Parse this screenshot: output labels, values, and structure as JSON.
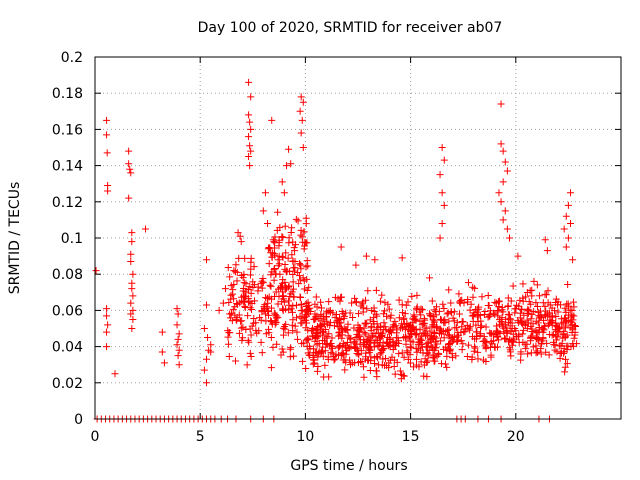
{
  "chart_data": {
    "type": "scatter",
    "title": "Day 100 of 2020, SRMTID for receiver ab07",
    "xlabel": "GPS time / hours",
    "ylabel": "SRMTID / TECUs",
    "xlim": [
      0,
      25
    ],
    "ylim": [
      0,
      0.2
    ],
    "xticks": [
      0,
      5,
      10,
      15,
      20
    ],
    "xtick_labels": [
      "0",
      "5",
      "10",
      "15",
      "20"
    ],
    "yticks": [
      0,
      0.02,
      0.04,
      0.06,
      0.08,
      0.1,
      0.12,
      0.14,
      0.16,
      0.18,
      0.2
    ],
    "ytick_labels": [
      "0",
      "0.02",
      "0.04",
      "0.06",
      "0.08",
      "0.1",
      "0.12",
      "0.14",
      "0.16",
      "0.18",
      "0.2"
    ],
    "grid": true,
    "marker": "+",
    "color": "#ff0000",
    "series": [
      {
        "name": "SRMTID",
        "points": [
          [
            0.05,
            0.082
          ],
          [
            0.55,
            0.165
          ],
          [
            0.55,
            0.157
          ],
          [
            0.58,
            0.147
          ],
          [
            0.6,
            0.129
          ],
          [
            0.6,
            0.126
          ],
          [
            0.55,
            0.061
          ],
          [
            0.55,
            0.057
          ],
          [
            0.6,
            0.052
          ],
          [
            0.55,
            0.048
          ],
          [
            0.55,
            0.04
          ],
          [
            0.95,
            0.025
          ],
          [
            1.6,
            0.148
          ],
          [
            1.6,
            0.141
          ],
          [
            1.65,
            0.138
          ],
          [
            1.7,
            0.136
          ],
          [
            1.6,
            0.122
          ],
          [
            1.75,
            0.103
          ],
          [
            1.75,
            0.098
          ],
          [
            1.7,
            0.091
          ],
          [
            1.7,
            0.087
          ],
          [
            1.8,
            0.08
          ],
          [
            1.75,
            0.075
          ],
          [
            1.75,
            0.072
          ],
          [
            1.8,
            0.068
          ],
          [
            1.7,
            0.064
          ],
          [
            1.8,
            0.06
          ],
          [
            1.7,
            0.058
          ],
          [
            1.8,
            0.055
          ],
          [
            1.75,
            0.05
          ],
          [
            2.4,
            0.105
          ],
          [
            3.2,
            0.048
          ],
          [
            3.2,
            0.037
          ],
          [
            3.3,
            0.031
          ],
          [
            3.9,
            0.061
          ],
          [
            3.95,
            0.058
          ],
          [
            3.9,
            0.052
          ],
          [
            4.0,
            0.047
          ],
          [
            3.95,
            0.044
          ],
          [
            3.9,
            0.041
          ],
          [
            4.0,
            0.038
          ],
          [
            3.95,
            0.035
          ],
          [
            4.0,
            0.03
          ],
          [
            5.3,
            0.088
          ],
          [
            5.3,
            0.063
          ],
          [
            5.2,
            0.05
          ],
          [
            5.35,
            0.045
          ],
          [
            5.4,
            0.038
          ],
          [
            5.3,
            0.033
          ],
          [
            5.2,
            0.027
          ],
          [
            5.3,
            0.02
          ],
          [
            5.5,
            0.041
          ],
          [
            5.5,
            0.037
          ],
          [
            5.9,
            0.06
          ],
          [
            6.1,
            0.064
          ],
          [
            6.2,
            0.072
          ],
          [
            6.4,
            0.058
          ],
          [
            6.6,
            0.082
          ],
          [
            7.3,
            0.186
          ],
          [
            7.4,
            0.178
          ],
          [
            7.3,
            0.168
          ],
          [
            7.35,
            0.164
          ],
          [
            7.4,
            0.16
          ],
          [
            7.3,
            0.156
          ],
          [
            7.35,
            0.151
          ],
          [
            7.4,
            0.148
          ],
          [
            7.3,
            0.145
          ],
          [
            7.35,
            0.14
          ],
          [
            6.8,
            0.103
          ],
          [
            6.9,
            0.101
          ],
          [
            6.95,
            0.098
          ],
          [
            8.4,
            0.165
          ],
          [
            9.2,
            0.149
          ],
          [
            9.1,
            0.14
          ],
          [
            9.3,
            0.141
          ],
          [
            8.9,
            0.131
          ],
          [
            9.0,
            0.125
          ],
          [
            9.8,
            0.178
          ],
          [
            9.9,
            0.175
          ],
          [
            9.75,
            0.17
          ],
          [
            9.85,
            0.165
          ],
          [
            9.8,
            0.158
          ],
          [
            9.9,
            0.15
          ],
          [
            8.1,
            0.125
          ],
          [
            8.0,
            0.115
          ],
          [
            8.2,
            0.108
          ],
          [
            8.5,
            0.098
          ],
          [
            8.7,
            0.088
          ],
          [
            11.7,
            0.095
          ],
          [
            12.9,
            0.09
          ],
          [
            13.3,
            0.088
          ],
          [
            12.4,
            0.085
          ],
          [
            14.6,
            0.089
          ],
          [
            15.9,
            0.078
          ],
          [
            16.5,
            0.15
          ],
          [
            16.6,
            0.143
          ],
          [
            16.4,
            0.135
          ],
          [
            16.5,
            0.125
          ],
          [
            16.6,
            0.118
          ],
          [
            16.5,
            0.108
          ],
          [
            16.4,
            0.1
          ],
          [
            19.3,
            0.174
          ],
          [
            19.3,
            0.152
          ],
          [
            19.4,
            0.148
          ],
          [
            19.5,
            0.142
          ],
          [
            19.6,
            0.137
          ],
          [
            19.4,
            0.131
          ],
          [
            19.2,
            0.125
          ],
          [
            19.3,
            0.12
          ],
          [
            19.5,
            0.115
          ],
          [
            19.4,
            0.11
          ],
          [
            19.6,
            0.105
          ],
          [
            19.7,
            0.1
          ],
          [
            20.1,
            0.09
          ],
          [
            22.6,
            0.125
          ],
          [
            22.5,
            0.118
          ],
          [
            22.4,
            0.112
          ],
          [
            22.6,
            0.108
          ],
          [
            22.3,
            0.105
          ],
          [
            22.5,
            0.1
          ],
          [
            22.4,
            0.095
          ],
          [
            22.7,
            0.088
          ],
          [
            21.4,
            0.099
          ],
          [
            21.5,
            0.093
          ],
          [
            0.1,
            0
          ],
          [
            0.3,
            0
          ],
          [
            0.5,
            0
          ],
          [
            0.7,
            0
          ],
          [
            0.9,
            0
          ],
          [
            1.1,
            0
          ],
          [
            1.3,
            0
          ],
          [
            1.5,
            0
          ],
          [
            1.7,
            0
          ],
          [
            1.9,
            0
          ],
          [
            2.1,
            0
          ],
          [
            2.3,
            0
          ],
          [
            2.5,
            0
          ],
          [
            2.7,
            0
          ],
          [
            2.9,
            0
          ],
          [
            3.1,
            0
          ],
          [
            3.3,
            0
          ],
          [
            3.5,
            0
          ],
          [
            3.7,
            0
          ],
          [
            3.9,
            0
          ],
          [
            4.1,
            0
          ],
          [
            4.3,
            0
          ],
          [
            4.5,
            0
          ],
          [
            4.7,
            0
          ],
          [
            4.9,
            0
          ],
          [
            5.1,
            0
          ],
          [
            5.3,
            0
          ],
          [
            5.5,
            0
          ],
          [
            5.7,
            0
          ],
          [
            6.0,
            0
          ],
          [
            6.3,
            0
          ],
          [
            6.7,
            0
          ],
          [
            7.4,
            0
          ],
          [
            8.0,
            0
          ],
          [
            8.5,
            0
          ],
          [
            17.2,
            0
          ],
          [
            17.4,
            0
          ],
          [
            17.6,
            0
          ],
          [
            18.2,
            0
          ],
          [
            18.7,
            0
          ],
          [
            19.3,
            0
          ],
          [
            21.1,
            0
          ],
          [
            21.6,
            0
          ]
        ]
      }
    ],
    "dense_bands": [
      {
        "x_from": 6.3,
        "x_to": 10.2,
        "y_center": 0.062,
        "y_spread": 0.04,
        "count": 260
      },
      {
        "x_from": 8.2,
        "x_to": 10.1,
        "y_center": 0.095,
        "y_spread": 0.025,
        "count": 70
      },
      {
        "x_from": 10.0,
        "x_to": 16.4,
        "y_center": 0.045,
        "y_spread": 0.03,
        "count": 560
      },
      {
        "x_from": 16.4,
        "x_to": 19.0,
        "y_center": 0.05,
        "y_spread": 0.03,
        "count": 160
      },
      {
        "x_from": 19.0,
        "x_to": 22.9,
        "y_center": 0.052,
        "y_spread": 0.03,
        "count": 300
      }
    ]
  }
}
